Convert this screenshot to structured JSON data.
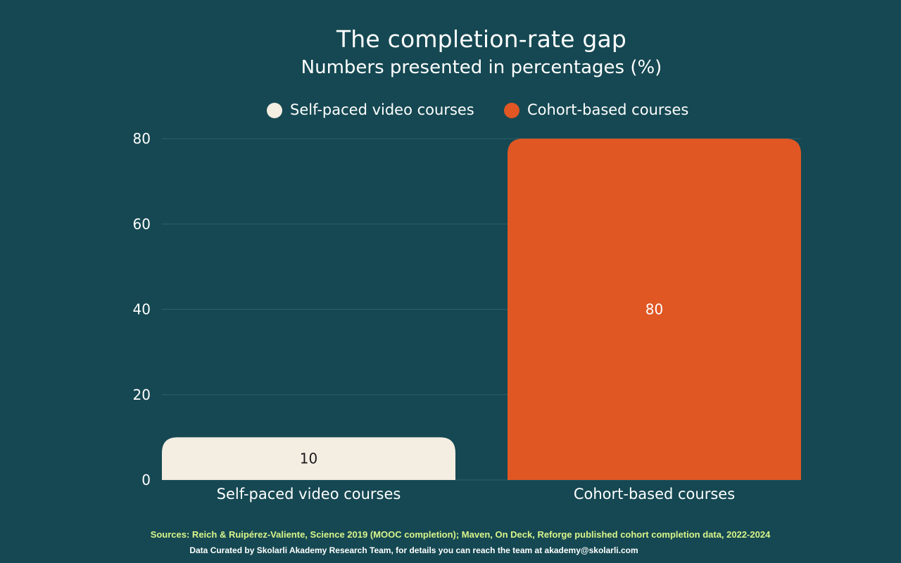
{
  "header": {
    "title": "The completion-rate gap",
    "subtitle": "Numbers presented in percentages (%)"
  },
  "footer": {
    "sources": "Sources: Reich & Ruipérez-Valiente, Science 2019 (MOOC completion); Maven, On Deck, Reforge published cohort completion data, 2022-2024",
    "credit": "Data Curated by Skolarli Akademy Research Team, for details you can reach the team at akademy@skolarli.com"
  },
  "colors": {
    "background": "#154852",
    "self_paced": "#f4ede2",
    "cohort": "#e05724",
    "text": "#ffffff",
    "source_text": "#d9f58a",
    "gridline": "#2d6068"
  },
  "chart_data": {
    "type": "bar",
    "title": "The completion-rate gap",
    "subtitle": "Numbers presented in percentages (%)",
    "categories": [
      "Self-paced video courses",
      "Cohort-based courses"
    ],
    "values": [
      10,
      80
    ],
    "data_labels": [
      "10",
      "80"
    ],
    "legend": [
      "Self-paced video courses",
      "Cohort-based courses"
    ],
    "legend_position": "top-center",
    "xlabel": "",
    "ylabel": "",
    "ylim": [
      0,
      80
    ],
    "yticks": [
      0,
      20,
      40,
      60,
      80
    ],
    "grid": true
  }
}
